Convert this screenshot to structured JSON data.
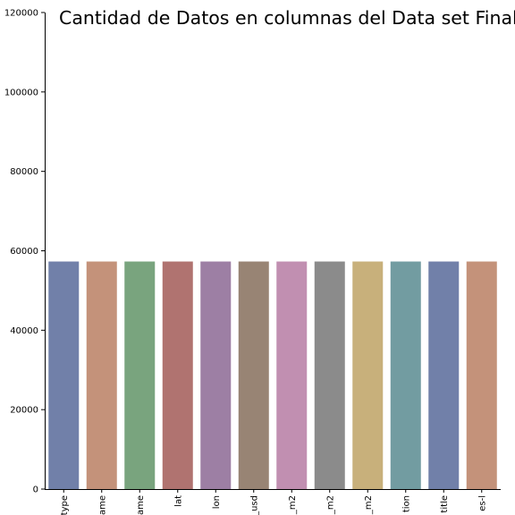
{
  "chart_data": {
    "type": "bar",
    "title": "Cantidad de Datos en columnas del Data set Final",
    "xlabel": "",
    "ylabel": "",
    "categories": [
      "type",
      "ame",
      "ame",
      "lat",
      "lon",
      "_usd",
      "_m2",
      "_m2",
      "_m2",
      "tion",
      "title",
      "es-l"
    ],
    "values": [
      57300,
      57300,
      57300,
      57300,
      57300,
      57300,
      57300,
      57300,
      57300,
      57300,
      57300,
      57300
    ],
    "ylim": [
      0,
      120000
    ],
    "yticks": [
      "0",
      "20000",
      "40000",
      "60000",
      "80000",
      "100000",
      "120000"
    ],
    "grid": false,
    "legend": "none",
    "colors": [
      "#7180a9",
      "#c4927a",
      "#79a47e",
      "#b07370",
      "#9d7fa4",
      "#988474",
      "#c18fb1",
      "#8b8b8b",
      "#c8b07b",
      "#729ca1",
      "#7180a9",
      "#c4927a"
    ]
  }
}
